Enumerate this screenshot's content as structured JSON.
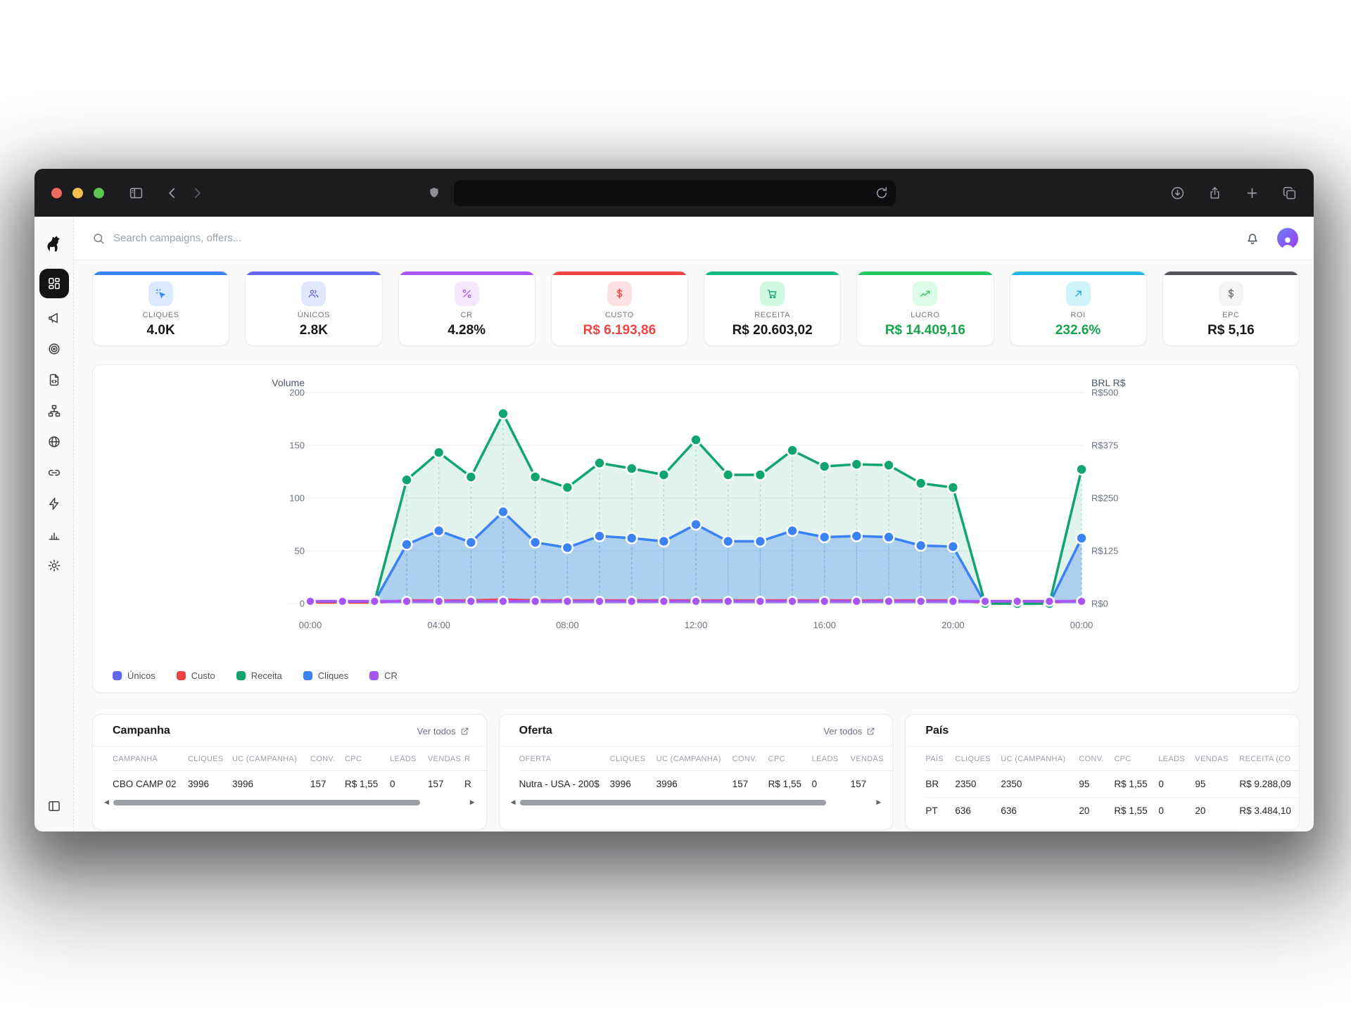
{
  "browser": {
    "titlebar_icons": [
      "sidebar-toggle-icon",
      "back-icon",
      "forward-icon",
      "shield-icon",
      "reload-icon",
      "download-icon",
      "share-icon",
      "new-tab-icon",
      "tabs-icon"
    ],
    "url_value": ""
  },
  "sidebar": {
    "items": [
      {
        "icon": "dashboard-icon",
        "active": true
      },
      {
        "icon": "megaphone-icon"
      },
      {
        "icon": "target-icon"
      },
      {
        "icon": "file-code-icon"
      },
      {
        "icon": "sitemap-icon"
      },
      {
        "icon": "globe-icon"
      },
      {
        "icon": "link-icon"
      },
      {
        "icon": "zap-icon"
      },
      {
        "icon": "bar-chart-icon"
      },
      {
        "icon": "gear-icon"
      }
    ],
    "bottom_icon": "panel-collapse-icon"
  },
  "header": {
    "search_placeholder": "Search campaigns, offers...",
    "icons": [
      "search-icon",
      "bell-icon",
      "avatar"
    ]
  },
  "kpis": [
    {
      "label": "CLIQUES",
      "value": "4.0K",
      "accent": "#3b82f6",
      "icon": "cursor-click-icon",
      "icon_bg": "#dbeafe",
      "icon_color": "#3b82f6",
      "value_color": "#18181b"
    },
    {
      "label": "ÚNICOS",
      "value": "2.8K",
      "accent": "#6366f1",
      "icon": "users-icon",
      "icon_bg": "#e0e7ff",
      "icon_color": "#6366f1",
      "value_color": "#18181b"
    },
    {
      "label": "CR",
      "value": "4.28%",
      "accent": "#a855f7",
      "icon": "percent-icon",
      "icon_bg": "#f3e8ff",
      "icon_color": "#a855f7",
      "value_color": "#18181b"
    },
    {
      "label": "CUSTO",
      "value": "R$ 6.193,86",
      "accent": "#ef4444",
      "icon": "dollar-icon",
      "icon_bg": "#fee2e2",
      "icon_color": "#ef4444",
      "value_color": "#ef4444"
    },
    {
      "label": "RECEITA",
      "value": "R$ 20.603,02",
      "accent": "#10b981",
      "icon": "cart-icon",
      "icon_bg": "#d1fae5",
      "icon_color": "#10a56f",
      "value_color": "#18181b"
    },
    {
      "label": "LUCRO",
      "value": "R$ 14.409,16",
      "accent": "#22c55e",
      "icon": "trending-up-icon",
      "icon_bg": "#dcfce7",
      "icon_color": "#22c55e",
      "value_color": "#16a34a"
    },
    {
      "label": "ROI",
      "value": "232.6%",
      "accent": "#22b8e8",
      "icon": "arrow-up-right-icon",
      "icon_bg": "#cff4fc",
      "icon_color": "#0ea5e9",
      "value_color": "#16a34a"
    },
    {
      "label": "EPC",
      "value": "R$ 5,16",
      "accent": "#52525b",
      "icon": "dollar-icon",
      "icon_bg": "#f4f4f5",
      "icon_color": "#71717a",
      "value_color": "#18181b"
    }
  ],
  "chart_data": {
    "type": "area",
    "x": [
      "00:00",
      "01:00",
      "02:00",
      "03:00",
      "04:00",
      "05:00",
      "06:00",
      "07:00",
      "08:00",
      "09:00",
      "10:00",
      "11:00",
      "12:00",
      "13:00",
      "14:00",
      "15:00",
      "16:00",
      "17:00",
      "18:00",
      "19:00",
      "20:00",
      "21:00",
      "22:00",
      "23:00",
      "00:00"
    ],
    "x_tick_labels": [
      "00:00",
      "04:00",
      "08:00",
      "12:00",
      "16:00",
      "20:00",
      "00:00"
    ],
    "left_axis": {
      "label": "Volume",
      "range": [
        0,
        200
      ],
      "ticks": [
        0,
        50,
        100,
        150,
        200
      ]
    },
    "right_axis": {
      "label": "BRL R$",
      "range": [
        0,
        500
      ],
      "tick_labels": [
        "R$0",
        "R$125",
        "R$250",
        "R$375",
        "R$500"
      ]
    },
    "grid": true,
    "legend_position": "bottom-left",
    "series": [
      {
        "name": "Únicos",
        "color": "#6366f1",
        "axis": "volume",
        "fill": false,
        "values": [
          2,
          2,
          2,
          56,
          69,
          58,
          87,
          58,
          53,
          64,
          62,
          59,
          75,
          59,
          59,
          69,
          63,
          64,
          63,
          55,
          54,
          0,
          0,
          0,
          62
        ]
      },
      {
        "name": "Custo",
        "color": "#ef4444",
        "axis": "brl",
        "fill": false,
        "values": [
          2,
          2,
          2,
          8,
          8,
          8,
          10,
          8,
          8,
          8,
          8,
          8,
          8,
          8,
          8,
          8,
          8,
          8,
          8,
          8,
          8,
          2,
          2,
          2,
          8
        ]
      },
      {
        "name": "Receita",
        "color": "#10a56f",
        "axis": "brl",
        "fill": true,
        "values": [
          5,
          5,
          5,
          293,
          358,
          300,
          450,
          300,
          275,
          333,
          320,
          305,
          388,
          305,
          305,
          363,
          325,
          330,
          328,
          285,
          275,
          0,
          0,
          0,
          318
        ]
      },
      {
        "name": "Cliques",
        "color": "#3b82f6",
        "axis": "volume",
        "fill": true,
        "values": [
          2,
          2,
          2,
          56,
          69,
          58,
          87,
          58,
          53,
          64,
          62,
          59,
          75,
          59,
          59,
          69,
          63,
          64,
          63,
          55,
          54,
          0,
          0,
          0,
          62
        ]
      },
      {
        "name": "CR",
        "color": "#a855f7",
        "axis": "percent",
        "fill": false,
        "values": [
          4.3,
          4.3,
          4.3,
          4.3,
          4.3,
          4.3,
          4.3,
          4.3,
          4.3,
          4.3,
          4.3,
          4.3,
          4.3,
          4.3,
          4.3,
          4.3,
          4.3,
          4.3,
          4.3,
          4.3,
          4.3,
          4.3,
          4.3,
          4.3,
          4.3
        ]
      }
    ],
    "legend": [
      "Únicos",
      "Custo",
      "Receita",
      "Cliques",
      "CR"
    ]
  },
  "tables": [
    {
      "id": "campanha",
      "title": "Campanha",
      "link": "Ver todos",
      "scrollbar": true,
      "headers": [
        "CAMPANHA",
        "CLIQUES",
        "UC (CAMPANHA)",
        "CONV.",
        "CPC",
        "LEADS",
        "VENDAS",
        "R"
      ],
      "rows": [
        [
          "CBO CAMP 02",
          "3996",
          "3996",
          "157",
          "R$ 1,55",
          "0",
          "157",
          "R"
        ]
      ]
    },
    {
      "id": "oferta",
      "title": "Oferta",
      "link": "Ver todos",
      "scrollbar": true,
      "headers": [
        "OFERTA",
        "CLIQUES",
        "UC (CAMPANHA)",
        "CONV.",
        "CPC",
        "LEADS",
        "VENDAS"
      ],
      "rows": [
        [
          "Nutra - USA - 200$",
          "3996",
          "3996",
          "157",
          "R$ 1,55",
          "0",
          "157"
        ]
      ]
    },
    {
      "id": "pais",
      "title": "País",
      "link": "",
      "scrollbar": false,
      "headers": [
        "PAÍS",
        "CLIQUES",
        "UC (CAMPANHA)",
        "CONV.",
        "CPC",
        "LEADS",
        "VENDAS",
        "RECEITA (CO"
      ],
      "rows": [
        [
          "BR",
          "2350",
          "2350",
          "95",
          "R$ 1,55",
          "0",
          "95",
          "R$ 9.288,09"
        ],
        [
          "PT",
          "636",
          "636",
          "20",
          "R$ 1,55",
          "0",
          "20",
          "R$ 3.484,10"
        ]
      ]
    }
  ]
}
